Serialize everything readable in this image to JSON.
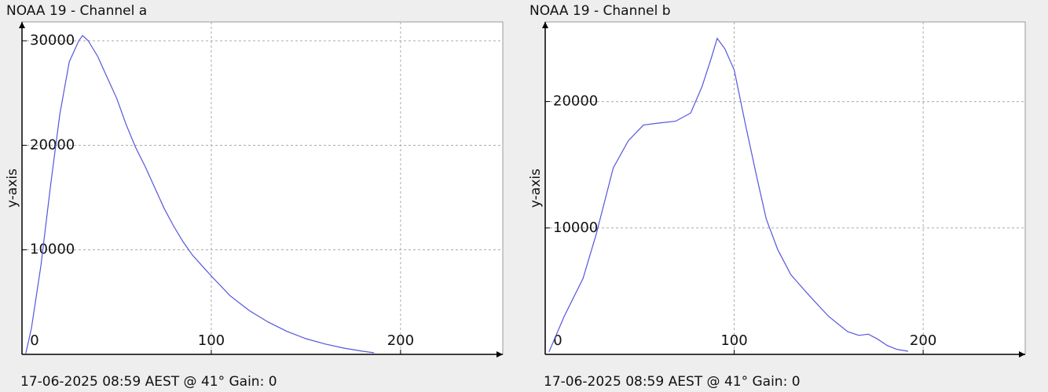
{
  "chart_data": [
    {
      "type": "line",
      "title": "NOAA 19 - Channel a",
      "y_label": "y-axis",
      "footer": "17-06-2025 08:59 AEST @ 41° Gain: 0",
      "color": "#5555dd",
      "x": [
        2,
        5,
        10,
        15,
        20,
        25,
        30,
        32,
        35,
        40,
        45,
        50,
        55,
        60,
        65,
        70,
        75,
        80,
        85,
        90,
        95,
        100,
        110,
        120,
        130,
        140,
        150,
        160,
        170,
        180,
        186
      ],
      "values": [
        100,
        2500,
        8500,
        16000,
        23000,
        28000,
        30000,
        30500,
        30000,
        28500,
        26500,
        24500,
        22000,
        19800,
        18000,
        16000,
        14000,
        12300,
        10800,
        9500,
        8500,
        7500,
        5600,
        4200,
        3100,
        2200,
        1500,
        1000,
        600,
        300,
        150
      ],
      "xlim": [
        0,
        254
      ],
      "xticks": [
        0,
        100,
        200
      ],
      "ylim": [
        0,
        31800
      ],
      "yticks": [
        10000,
        20000,
        30000
      ],
      "grid": true
    },
    {
      "type": "line",
      "title": "NOAA 19 - Channel b",
      "y_label": "y-axis",
      "footer": "17-06-2025 08:59 AEST @ 41° Gain: 0",
      "color": "#5555dd",
      "x": [
        2,
        10,
        20,
        27,
        36,
        44,
        52,
        60,
        69,
        77,
        83,
        88,
        91,
        95,
        100,
        106,
        112,
        117,
        123,
        130,
        140,
        150,
        160,
        166,
        171,
        176,
        181,
        186,
        192
      ],
      "values": [
        200,
        3000,
        6000,
        9500,
        14750,
        16900,
        18150,
        18300,
        18450,
        19100,
        21200,
        23500,
        25000,
        24200,
        22500,
        18150,
        14000,
        10700,
        8300,
        6300,
        4600,
        3000,
        1800,
        1500,
        1600,
        1200,
        700,
        400,
        250
      ],
      "xlim": [
        0,
        254
      ],
      "xticks": [
        0,
        100,
        200
      ],
      "ylim": [
        0,
        26300
      ],
      "yticks": [
        10000,
        20000
      ],
      "grid": true
    }
  ]
}
